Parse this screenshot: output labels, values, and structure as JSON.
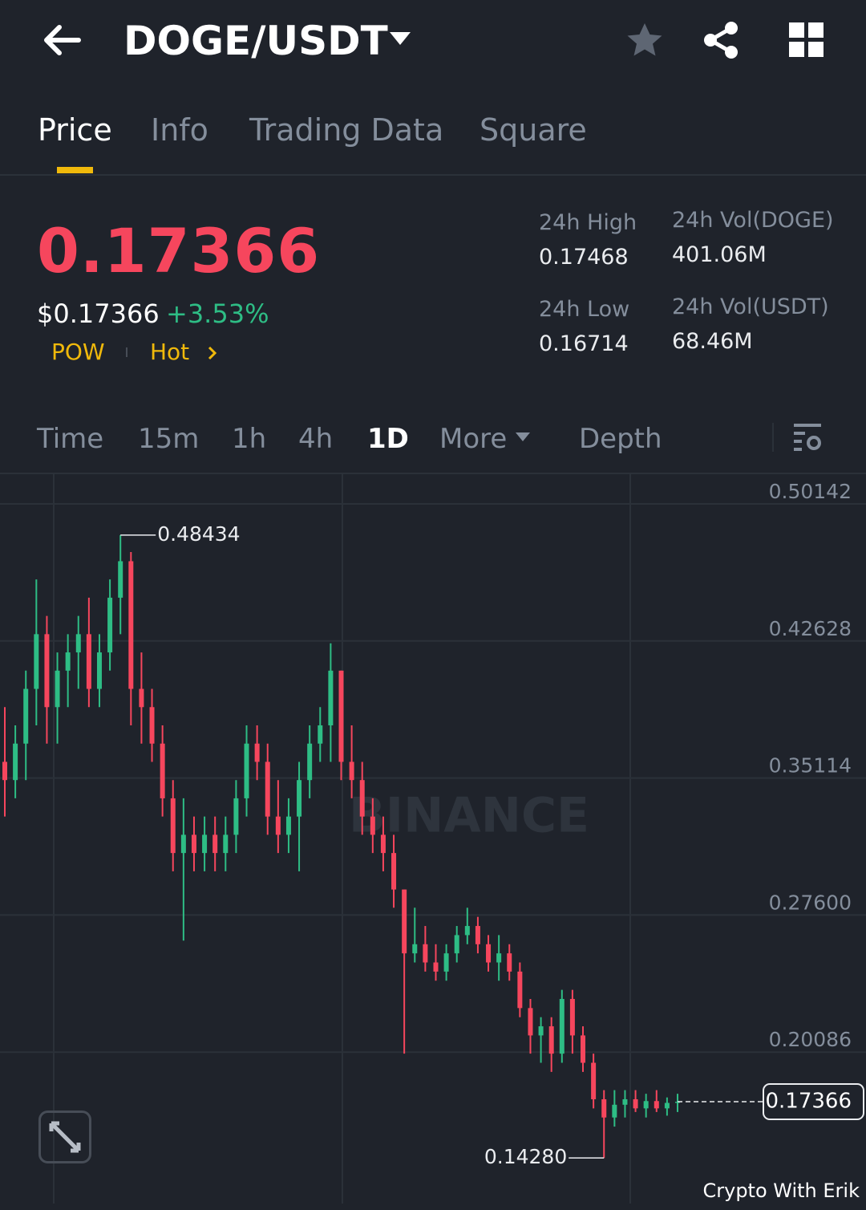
{
  "header": {
    "title": "DOGE/USDT"
  },
  "tabs": [
    "Price",
    "Info",
    "Trading Data",
    "Square"
  ],
  "ticker": {
    "price": "0.17366",
    "usd_price": "$0.17366",
    "change": "+3.53%",
    "tags": [
      "POW",
      "Hot"
    ],
    "stats": [
      {
        "label": "24h High",
        "value": "0.17468"
      },
      {
        "label": "24h Vol(DOGE)",
        "value": "401.06M"
      },
      {
        "label": "24h Low",
        "value": "0.16714"
      },
      {
        "label": "24h Vol(USDT)",
        "value": "68.46M"
      }
    ]
  },
  "intervals": [
    "Time",
    "15m",
    "1h",
    "4h",
    "1D",
    "More",
    "Depth"
  ],
  "chart_data": {
    "type": "candlestick",
    "up_color": "#2ebd85",
    "down_color": "#f6465d",
    "grid": true,
    "ylim": [
      0.1178,
      0.5177
    ],
    "yticks": [
      0.50142,
      0.42628,
      0.35114,
      {
        "value": 0.276,
        "label": "0.27600"
      },
      0.20086
    ],
    "open": [
      0.36,
      0.35,
      0.37,
      0.4,
      0.43,
      0.39,
      0.41,
      0.42,
      0.43,
      0.4,
      0.42,
      0.45,
      0.47,
      0.4,
      0.39,
      0.37,
      0.34,
      0.31,
      0.32,
      0.31,
      0.32,
      0.31,
      0.32,
      0.34,
      0.37,
      0.36,
      0.33,
      0.32,
      0.33,
      0.35,
      0.37,
      0.38,
      0.41,
      0.36,
      0.35,
      0.33,
      0.32,
      0.31,
      0.29,
      0.255,
      0.26,
      0.25,
      0.245,
      0.255,
      0.265,
      0.27,
      0.26,
      0.25,
      0.255,
      0.245,
      0.225,
      0.21,
      0.215,
      0.2,
      0.23,
      0.21,
      0.195,
      0.175,
      0.165,
      0.172,
      0.175,
      0.17,
      0.174,
      0.17,
      0.173
    ],
    "high": [
      0.39,
      0.38,
      0.41,
      0.46,
      0.44,
      0.42,
      0.43,
      0.44,
      0.45,
      0.43,
      0.46,
      0.48434,
      0.475,
      0.42,
      0.4,
      0.38,
      0.35,
      0.34,
      0.33,
      0.33,
      0.33,
      0.33,
      0.35,
      0.38,
      0.38,
      0.37,
      0.35,
      0.34,
      0.36,
      0.38,
      0.39,
      0.425,
      0.41,
      0.38,
      0.36,
      0.34,
      0.33,
      0.32,
      0.29,
      0.28,
      0.27,
      0.26,
      0.26,
      0.27,
      0.28,
      0.275,
      0.265,
      0.265,
      0.26,
      0.25,
      0.23,
      0.22,
      0.22,
      0.235,
      0.235,
      0.215,
      0.2,
      0.18,
      0.18,
      0.18,
      0.18,
      0.178,
      0.18,
      0.176,
      0.178
    ],
    "low": [
      0.33,
      0.34,
      0.35,
      0.38,
      0.37,
      0.37,
      0.39,
      0.4,
      0.39,
      0.39,
      0.41,
      0.43,
      0.38,
      0.37,
      0.36,
      0.33,
      0.3,
      0.262,
      0.3,
      0.3,
      0.3,
      0.3,
      0.31,
      0.33,
      0.35,
      0.32,
      0.31,
      0.31,
      0.3,
      0.34,
      0.36,
      0.36,
      0.35,
      0.34,
      0.32,
      0.31,
      0.3,
      0.28,
      0.2,
      0.25,
      0.245,
      0.24,
      0.24,
      0.25,
      0.26,
      0.255,
      0.245,
      0.24,
      0.24,
      0.22,
      0.2,
      0.195,
      0.19,
      0.195,
      0.2,
      0.19,
      0.17,
      0.1428,
      0.16,
      0.165,
      0.168,
      0.165,
      0.168,
      0.166,
      0.168
    ],
    "close": [
      0.35,
      0.37,
      0.4,
      0.43,
      0.39,
      0.41,
      0.42,
      0.43,
      0.4,
      0.42,
      0.45,
      0.47,
      0.4,
      0.39,
      0.37,
      0.34,
      0.31,
      0.32,
      0.31,
      0.32,
      0.31,
      0.32,
      0.34,
      0.37,
      0.36,
      0.33,
      0.32,
      0.33,
      0.35,
      0.37,
      0.38,
      0.41,
      0.36,
      0.35,
      0.33,
      0.32,
      0.31,
      0.29,
      0.255,
      0.26,
      0.25,
      0.245,
      0.255,
      0.265,
      0.27,
      0.26,
      0.25,
      0.255,
      0.245,
      0.225,
      0.21,
      0.215,
      0.2,
      0.23,
      0.21,
      0.195,
      0.175,
      0.165,
      0.172,
      0.175,
      0.17,
      0.174,
      0.17,
      0.173,
      0.17366
    ],
    "annotations": [
      {
        "index": 11,
        "value": 0.48434
      },
      {
        "index": 57,
        "value": {
          "value": 0.1428,
          "label": "0.14280"
        }
      }
    ],
    "last_price": 0.17366,
    "watermark": "BINANCE"
  },
  "credit": "Crypto With Erik"
}
